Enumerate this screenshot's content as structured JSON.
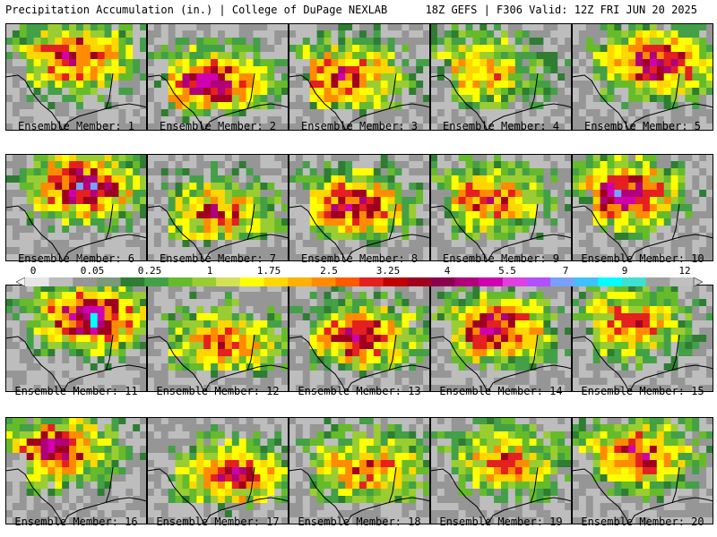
{
  "header": {
    "title": "Precipitation Accumulation (in.) | College of DuPage NEXLAB",
    "run_info": "18Z GEFS | F306 Valid: 12Z FRI JUN 20 2025"
  },
  "colorbar": {
    "ticks": [
      "0",
      "0.05",
      "0.25",
      "1",
      "1.75",
      "2.5",
      "3.25",
      "4",
      "5.5",
      "7",
      "9",
      "12"
    ],
    "colors": [
      "#e6e6e6",
      "#bdbdbd",
      "#969696",
      "#7a9a7a",
      "#2e7d32",
      "#43a047",
      "#66bb2a",
      "#9acd32",
      "#d4e157",
      "#ffff00",
      "#ffd700",
      "#ffb000",
      "#ff8c00",
      "#ff5a00",
      "#e52020",
      "#c00000",
      "#a00020",
      "#8b0050",
      "#b0007a",
      "#d000b0",
      "#e040e0",
      "#b050ff",
      "#7aa0ff",
      "#40c0ff",
      "#00ffff",
      "#40e0d0",
      "#a0a0a0",
      "#c0c0c0"
    ]
  },
  "panels": [
    {
      "label": "Ensemble Member: 1",
      "hot": 0.75,
      "peak": 0.82
    },
    {
      "label": "Ensemble Member: 2",
      "hot": 0.8,
      "peak": 0.85
    },
    {
      "label": "Ensemble Member: 3",
      "hot": 0.7,
      "peak": 0.8
    },
    {
      "label": "Ensemble Member: 4",
      "hot": 0.55,
      "peak": 0.88
    },
    {
      "label": "Ensemble Member: 5",
      "hot": 0.8,
      "peak": 0.85
    },
    {
      "label": "Ensemble Member: 6",
      "hot": 0.85,
      "peak": 0.9
    },
    {
      "label": "Ensemble Member: 7",
      "hot": 0.6,
      "peak": 0.95
    },
    {
      "label": "Ensemble Member: 8",
      "hot": 0.75,
      "peak": 0.78
    },
    {
      "label": "Ensemble Member: 9",
      "hot": 0.65,
      "peak": 0.75
    },
    {
      "label": "Ensemble Member: 10",
      "hot": 0.85,
      "peak": 0.85
    },
    {
      "label": "Ensemble Member: 11",
      "hot": 0.9,
      "peak": 0.95
    },
    {
      "label": "Ensemble Member: 12",
      "hot": 0.6,
      "peak": 0.8
    },
    {
      "label": "Ensemble Member: 13",
      "hot": 0.75,
      "peak": 0.85
    },
    {
      "label": "Ensemble Member: 14",
      "hot": 0.8,
      "peak": 0.88
    },
    {
      "label": "Ensemble Member: 15",
      "hot": 0.6,
      "peak": 0.7
    },
    {
      "label": "Ensemble Member: 16",
      "hot": 0.75,
      "peak": 0.9
    },
    {
      "label": "Ensemble Member: 17",
      "hot": 0.7,
      "peak": 0.85
    },
    {
      "label": "Ensemble Member: 18",
      "hot": 0.6,
      "peak": 0.8
    },
    {
      "label": "Ensemble Member: 19",
      "hot": 0.55,
      "peak": 0.8
    },
    {
      "label": "Ensemble Member: 20",
      "hot": 0.7,
      "peak": 0.88
    }
  ]
}
